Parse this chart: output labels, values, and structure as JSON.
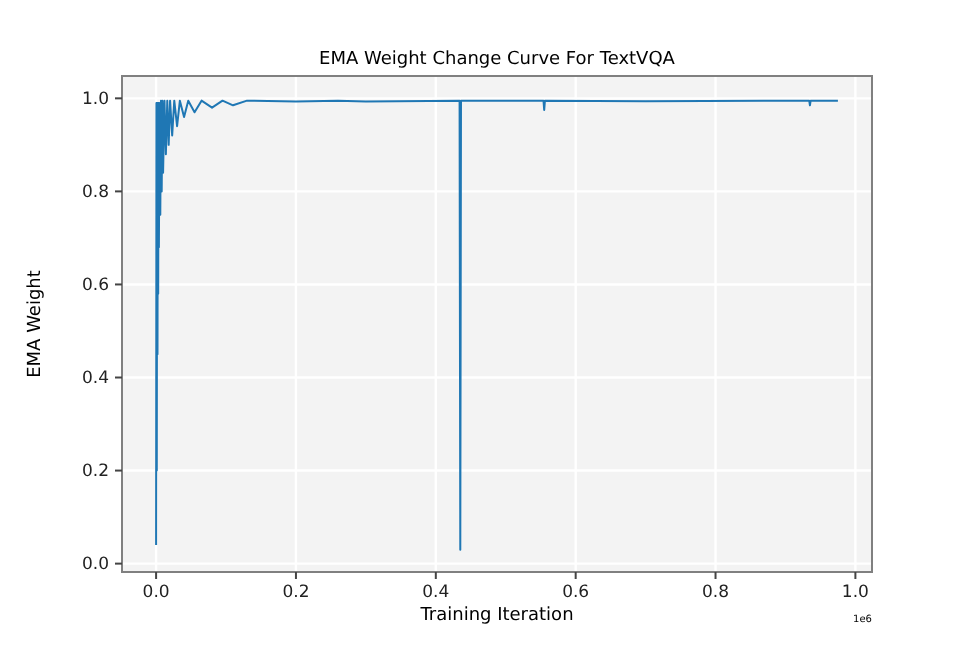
{
  "chart_data": {
    "type": "line",
    "title": "EMA Weight Change Curve For TextVQA",
    "xlabel": "Training Iteration",
    "ylabel": "EMA Weight",
    "annotations": [
      "1e6"
    ],
    "x": [
      0,
      0.0005,
      0.001,
      0.0015,
      0.002,
      0.0025,
      0.003,
      0.0035,
      0.004,
      0.005,
      0.006,
      0.007,
      0.008,
      0.009,
      0.01,
      0.012,
      0.014,
      0.016,
      0.018,
      0.02,
      0.023,
      0.026,
      0.03,
      0.034,
      0.04,
      0.046,
      0.055,
      0.065,
      0.08,
      0.095,
      0.11,
      0.13,
      0.2,
      0.26,
      0.3,
      0.434,
      0.435,
      0.436,
      0.554,
      0.555,
      0.556,
      0.7,
      0.934,
      0.935,
      0.936,
      0.975
    ],
    "series": [
      {
        "color": "#1f77b4",
        "values": [
          0.04,
          0.99,
          0.2,
          0.99,
          0.45,
          0.99,
          0.58,
          0.99,
          0.68,
          0.99,
          0.75,
          0.995,
          0.8,
          0.995,
          0.84,
          0.995,
          0.88,
          0.995,
          0.9,
          0.995,
          0.92,
          0.995,
          0.94,
          0.995,
          0.96,
          0.995,
          0.97,
          0.995,
          0.98,
          0.995,
          0.985,
          0.995,
          0.993,
          0.995,
          0.993,
          0.995,
          0.03,
          0.995,
          0.995,
          0.975,
          0.995,
          0.994,
          0.995,
          0.985,
          0.995,
          0.995
        ]
      }
    ],
    "xlim": [
      -0.04875,
      1.02375
    ],
    "ylim": [
      -0.018,
      1.048
    ],
    "xticks": [
      {
        "value": 0,
        "label": "0.0"
      },
      0.2,
      0.4,
      0.6,
      0.8,
      {
        "value": 1,
        "label": "1.0"
      }
    ],
    "yticks": [
      {
        "value": 0,
        "label": "0.0"
      },
      0.2,
      0.4,
      0.6,
      0.8,
      {
        "value": 1,
        "label": "1.0"
      }
    ],
    "grid": true,
    "marker": "none",
    "line_style": "solid"
  }
}
